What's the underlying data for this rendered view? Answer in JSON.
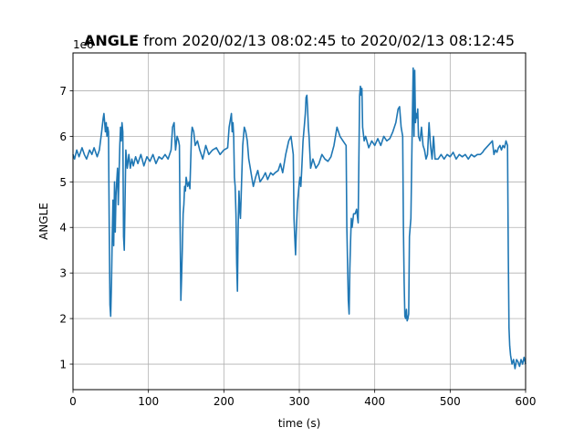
{
  "chart_data": {
    "type": "line",
    "title_bold": "ANGLE",
    "title_rest": " from 2020/02/13 08:02:45 to 2020/02/13 08:12:45",
    "xlabel": "time (s)",
    "ylabel": "ANGLE",
    "offset_label": "1e6",
    "xlim": [
      0,
      600
    ],
    "ylim": [
      0.44,
      7.83
    ],
    "xticks": [
      0,
      100,
      200,
      300,
      400,
      500,
      600
    ],
    "xtick_labels": [
      "0",
      "100",
      "200",
      "300",
      "400",
      "500",
      "600"
    ],
    "yticks": [
      1,
      2,
      3,
      4,
      5,
      6,
      7
    ],
    "ytick_labels": [
      "1",
      "2",
      "3",
      "4",
      "5",
      "6",
      "7"
    ],
    "grid": true,
    "line_color": "#1f77b4",
    "series": [
      {
        "points": [
          [
            0,
            5.6
          ],
          [
            2,
            5.5
          ],
          [
            5,
            5.7
          ],
          [
            8,
            5.55
          ],
          [
            12,
            5.75
          ],
          [
            15,
            5.6
          ],
          [
            18,
            5.5
          ],
          [
            22,
            5.7
          ],
          [
            25,
            5.6
          ],
          [
            28,
            5.75
          ],
          [
            32,
            5.55
          ],
          [
            35,
            5.7
          ],
          [
            38,
            6.1
          ],
          [
            40,
            6.4
          ],
          [
            41,
            6.5
          ],
          [
            43,
            6.1
          ],
          [
            44,
            6.3
          ],
          [
            45,
            6.0
          ],
          [
            46,
            6.2
          ],
          [
            47,
            6.1
          ],
          [
            48,
            4.0
          ],
          [
            49,
            2.3
          ],
          [
            50,
            2.05
          ],
          [
            51,
            2.8
          ],
          [
            52,
            3.8
          ],
          [
            53,
            4.6
          ],
          [
            54,
            3.6
          ],
          [
            55,
            5.0
          ],
          [
            56,
            3.9
          ],
          [
            57,
            4.7
          ],
          [
            58,
            5.0
          ],
          [
            59,
            5.3
          ],
          [
            60,
            4.5
          ],
          [
            62,
            5.8
          ],
          [
            63,
            6.2
          ],
          [
            64,
            5.9
          ],
          [
            65,
            6.3
          ],
          [
            66,
            6.1
          ],
          [
            67,
            3.8
          ],
          [
            68,
            3.5
          ],
          [
            70,
            5.7
          ],
          [
            72,
            5.3
          ],
          [
            74,
            5.6
          ],
          [
            76,
            5.3
          ],
          [
            78,
            5.5
          ],
          [
            80,
            5.35
          ],
          [
            83,
            5.55
          ],
          [
            86,
            5.4
          ],
          [
            90,
            5.6
          ],
          [
            94,
            5.35
          ],
          [
            98,
            5.55
          ],
          [
            102,
            5.45
          ],
          [
            106,
            5.6
          ],
          [
            110,
            5.4
          ],
          [
            114,
            5.55
          ],
          [
            118,
            5.5
          ],
          [
            122,
            5.6
          ],
          [
            126,
            5.5
          ],
          [
            130,
            5.7
          ],
          [
            132,
            6.2
          ],
          [
            134,
            6.3
          ],
          [
            136,
            5.7
          ],
          [
            138,
            6.0
          ],
          [
            140,
            5.9
          ],
          [
            141,
            5.8
          ],
          [
            142,
            4.0
          ],
          [
            143,
            2.4
          ],
          [
            144,
            2.9
          ],
          [
            145,
            3.6
          ],
          [
            146,
            4.3
          ],
          [
            147,
            4.5
          ],
          [
            148,
            4.9
          ],
          [
            149,
            4.8
          ],
          [
            150,
            5.1
          ],
          [
            152,
            4.9
          ],
          [
            154,
            5.0
          ],
          [
            155,
            4.85
          ],
          [
            157,
            6.0
          ],
          [
            158,
            6.2
          ],
          [
            160,
            6.1
          ],
          [
            162,
            5.8
          ],
          [
            165,
            5.9
          ],
          [
            168,
            5.7
          ],
          [
            172,
            5.5
          ],
          [
            176,
            5.8
          ],
          [
            180,
            5.6
          ],
          [
            185,
            5.7
          ],
          [
            190,
            5.75
          ],
          [
            195,
            5.6
          ],
          [
            200,
            5.7
          ],
          [
            205,
            5.75
          ],
          [
            207,
            6.2
          ],
          [
            209,
            6.4
          ],
          [
            210,
            6.5
          ],
          [
            211,
            6.1
          ],
          [
            212,
            6.3
          ],
          [
            213,
            6.0
          ],
          [
            214,
            5.1
          ],
          [
            215,
            4.9
          ],
          [
            216,
            4.3
          ],
          [
            217,
            3.2
          ],
          [
            218,
            2.6
          ],
          [
            219,
            4.0
          ],
          [
            220,
            4.8
          ],
          [
            221,
            4.4
          ],
          [
            222,
            4.2
          ],
          [
            223,
            4.7
          ],
          [
            225,
            5.8
          ],
          [
            227,
            6.2
          ],
          [
            229,
            6.1
          ],
          [
            231,
            5.9
          ],
          [
            233,
            5.5
          ],
          [
            235,
            5.3
          ],
          [
            237,
            5.1
          ],
          [
            239,
            4.9
          ],
          [
            242,
            5.1
          ],
          [
            245,
            5.25
          ],
          [
            248,
            5.0
          ],
          [
            252,
            5.1
          ],
          [
            255,
            5.2
          ],
          [
            258,
            5.05
          ],
          [
            262,
            5.2
          ],
          [
            265,
            5.15
          ],
          [
            268,
            5.2
          ],
          [
            272,
            5.25
          ],
          [
            275,
            5.4
          ],
          [
            278,
            5.2
          ],
          [
            282,
            5.6
          ],
          [
            286,
            5.9
          ],
          [
            289,
            6.0
          ],
          [
            292,
            5.6
          ],
          [
            293,
            4.2
          ],
          [
            294,
            3.8
          ],
          [
            295,
            3.4
          ],
          [
            296,
            3.9
          ],
          [
            297,
            4.3
          ],
          [
            298,
            4.6
          ],
          [
            299,
            4.8
          ],
          [
            300,
            5.0
          ],
          [
            301,
            5.1
          ],
          [
            302,
            4.9
          ],
          [
            303,
            5.2
          ],
          [
            305,
            5.9
          ],
          [
            307,
            6.3
          ],
          [
            308,
            6.5
          ],
          [
            309,
            6.85
          ],
          [
            310,
            6.9
          ],
          [
            311,
            6.6
          ],
          [
            312,
            6.2
          ],
          [
            313,
            6.0
          ],
          [
            315,
            5.3
          ],
          [
            318,
            5.5
          ],
          [
            322,
            5.3
          ],
          [
            326,
            5.4
          ],
          [
            330,
            5.6
          ],
          [
            334,
            5.5
          ],
          [
            338,
            5.45
          ],
          [
            342,
            5.55
          ],
          [
            346,
            5.8
          ],
          [
            350,
            6.2
          ],
          [
            354,
            6.0
          ],
          [
            358,
            5.9
          ],
          [
            362,
            5.8
          ],
          [
            363,
            4.0
          ],
          [
            364,
            3.2
          ],
          [
            365,
            2.4
          ],
          [
            366,
            2.1
          ],
          [
            367,
            3.1
          ],
          [
            368,
            3.7
          ],
          [
            369,
            4.2
          ],
          [
            370,
            4.0
          ],
          [
            372,
            4.3
          ],
          [
            374,
            4.3
          ],
          [
            376,
            4.4
          ],
          [
            378,
            4.1
          ],
          [
            379,
            5.5
          ],
          [
            380,
            6.9
          ],
          [
            381,
            7.1
          ],
          [
            382,
            6.9
          ],
          [
            383,
            7.05
          ],
          [
            384,
            6.2
          ],
          [
            386,
            5.9
          ],
          [
            388,
            6.0
          ],
          [
            392,
            5.75
          ],
          [
            396,
            5.9
          ],
          [
            400,
            5.8
          ],
          [
            404,
            5.95
          ],
          [
            408,
            5.8
          ],
          [
            412,
            6.0
          ],
          [
            416,
            5.9
          ],
          [
            420,
            5.95
          ],
          [
            424,
            6.1
          ],
          [
            428,
            6.3
          ],
          [
            431,
            6.6
          ],
          [
            433,
            6.65
          ],
          [
            435,
            6.2
          ],
          [
            437,
            6.0
          ],
          [
            438,
            4.0
          ],
          [
            439,
            2.8
          ],
          [
            440,
            2.05
          ],
          [
            441,
            2.0
          ],
          [
            442,
            2.2
          ],
          [
            443,
            1.95
          ],
          [
            444,
            2.0
          ],
          [
            445,
            2.1
          ],
          [
            446,
            3.8
          ],
          [
            448,
            4.2
          ],
          [
            450,
            6.5
          ],
          [
            451,
            7.5
          ],
          [
            452,
            6.0
          ],
          [
            453,
            7.45
          ],
          [
            454,
            6.3
          ],
          [
            455,
            6.5
          ],
          [
            456,
            6.4
          ],
          [
            457,
            6.6
          ],
          [
            458,
            6.0
          ],
          [
            460,
            5.9
          ],
          [
            462,
            6.2
          ],
          [
            464,
            5.8
          ],
          [
            466,
            5.7
          ],
          [
            468,
            5.5
          ],
          [
            470,
            5.6
          ],
          [
            472,
            6.3
          ],
          [
            474,
            5.8
          ],
          [
            476,
            5.5
          ],
          [
            478,
            6.0
          ],
          [
            480,
            5.5
          ],
          [
            484,
            5.5
          ],
          [
            488,
            5.6
          ],
          [
            492,
            5.5
          ],
          [
            496,
            5.6
          ],
          [
            500,
            5.55
          ],
          [
            504,
            5.65
          ],
          [
            508,
            5.5
          ],
          [
            512,
            5.6
          ],
          [
            516,
            5.55
          ],
          [
            520,
            5.6
          ],
          [
            524,
            5.5
          ],
          [
            528,
            5.6
          ],
          [
            532,
            5.55
          ],
          [
            536,
            5.6
          ],
          [
            540,
            5.6
          ],
          [
            543,
            5.65
          ],
          [
            545,
            5.7
          ],
          [
            556,
            5.9
          ],
          [
            558,
            5.6
          ],
          [
            560,
            5.7
          ],
          [
            562,
            5.65
          ],
          [
            564,
            5.75
          ],
          [
            566,
            5.8
          ],
          [
            568,
            5.7
          ],
          [
            570,
            5.8
          ],
          [
            572,
            5.75
          ],
          [
            574,
            5.9
          ],
          [
            576,
            5.8
          ],
          [
            577,
            3.5
          ],
          [
            578,
            1.8
          ],
          [
            579,
            1.4
          ],
          [
            580,
            1.2
          ],
          [
            582,
            1.0
          ],
          [
            584,
            1.1
          ],
          [
            586,
            0.9
          ],
          [
            588,
            1.1
          ],
          [
            590,
            1.05
          ],
          [
            592,
            0.95
          ],
          [
            594,
            1.1
          ],
          [
            596,
            1.0
          ],
          [
            598,
            1.15
          ],
          [
            600,
            1.0
          ]
        ]
      }
    ]
  }
}
